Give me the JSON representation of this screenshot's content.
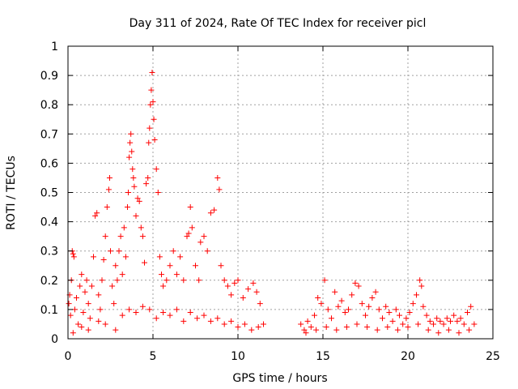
{
  "chart_data": {
    "type": "scatter",
    "title": "Day 311 of 2024, Rate Of TEC Index for receiver picl",
    "xlabel": "GPS time / hours",
    "ylabel": "ROTI / TECUs",
    "xlim": [
      0,
      25
    ],
    "ylim": [
      0,
      1
    ],
    "xticks": [
      0,
      5,
      10,
      15,
      20,
      25
    ],
    "xtick_labels": [
      "0",
      "5",
      "10",
      "15",
      "20",
      "25"
    ],
    "yticks": [
      0,
      0.1,
      0.2,
      0.3,
      0.4,
      0.5,
      0.6,
      0.7,
      0.8,
      0.9,
      1
    ],
    "ytick_labels": [
      "0",
      "0.1",
      "0.2",
      "0.3",
      "0.4",
      "0.5",
      "0.6",
      "0.7",
      "0.8",
      "0.9",
      "1"
    ],
    "grid": true,
    "marker": "plus",
    "color": "#ff0000",
    "series": [
      {
        "points": [
          [
            0.05,
            0.12
          ],
          [
            0.1,
            0.15
          ],
          [
            0.15,
            0.08
          ],
          [
            0.2,
            0.2
          ],
          [
            0.25,
            0.3
          ],
          [
            0.3,
            0.29
          ],
          [
            0.35,
            0.28
          ],
          [
            0.4,
            0.1
          ],
          [
            0.5,
            0.14
          ],
          [
            0.6,
            0.05
          ],
          [
            0.7,
            0.18
          ],
          [
            0.8,
            0.22
          ],
          [
            0.9,
            0.09
          ],
          [
            1.0,
            0.16
          ],
          [
            1.1,
            0.2
          ],
          [
            1.2,
            0.12
          ],
          [
            1.3,
            0.07
          ],
          [
            1.4,
            0.18
          ],
          [
            1.5,
            0.28
          ],
          [
            1.6,
            0.42
          ],
          [
            1.7,
            0.43
          ],
          [
            1.8,
            0.15
          ],
          [
            1.9,
            0.1
          ],
          [
            2.0,
            0.2
          ],
          [
            2.1,
            0.27
          ],
          [
            2.2,
            0.35
          ],
          [
            2.3,
            0.45
          ],
          [
            2.4,
            0.51
          ],
          [
            2.45,
            0.55
          ],
          [
            2.5,
            0.3
          ],
          [
            2.6,
            0.18
          ],
          [
            2.7,
            0.12
          ],
          [
            2.8,
            0.25
          ],
          [
            2.9,
            0.2
          ],
          [
            3.0,
            0.3
          ],
          [
            3.1,
            0.35
          ],
          [
            3.2,
            0.22
          ],
          [
            3.3,
            0.38
          ],
          [
            3.4,
            0.28
          ],
          [
            3.5,
            0.45
          ],
          [
            3.55,
            0.5
          ],
          [
            3.6,
            0.62
          ],
          [
            3.65,
            0.67
          ],
          [
            3.7,
            0.7
          ],
          [
            3.75,
            0.64
          ],
          [
            3.8,
            0.58
          ],
          [
            3.85,
            0.55
          ],
          [
            3.9,
            0.52
          ],
          [
            4.0,
            0.42
          ],
          [
            4.1,
            0.48
          ],
          [
            4.2,
            0.47
          ],
          [
            4.3,
            0.38
          ],
          [
            4.4,
            0.35
          ],
          [
            4.5,
            0.26
          ],
          [
            4.6,
            0.53
          ],
          [
            4.7,
            0.55
          ],
          [
            4.75,
            0.67
          ],
          [
            4.8,
            0.72
          ],
          [
            4.85,
            0.8
          ],
          [
            4.9,
            0.85
          ],
          [
            4.95,
            0.91
          ],
          [
            5.0,
            0.81
          ],
          [
            5.05,
            0.75
          ],
          [
            5.1,
            0.68
          ],
          [
            5.2,
            0.58
          ],
          [
            5.3,
            0.5
          ],
          [
            5.4,
            0.28
          ],
          [
            5.5,
            0.22
          ],
          [
            5.6,
            0.18
          ],
          [
            5.8,
            0.2
          ],
          [
            6.0,
            0.25
          ],
          [
            6.2,
            0.3
          ],
          [
            6.4,
            0.22
          ],
          [
            6.6,
            0.28
          ],
          [
            6.8,
            0.2
          ],
          [
            7.0,
            0.35
          ],
          [
            7.1,
            0.36
          ],
          [
            7.2,
            0.45
          ],
          [
            7.3,
            0.38
          ],
          [
            7.5,
            0.25
          ],
          [
            7.7,
            0.2
          ],
          [
            7.8,
            0.33
          ],
          [
            8.0,
            0.35
          ],
          [
            8.2,
            0.3
          ],
          [
            8.4,
            0.43
          ],
          [
            8.6,
            0.44
          ],
          [
            8.8,
            0.55
          ],
          [
            8.9,
            0.51
          ],
          [
            9.0,
            0.25
          ],
          [
            9.2,
            0.2
          ],
          [
            9.4,
            0.18
          ],
          [
            9.6,
            0.15
          ],
          [
            9.8,
            0.19
          ],
          [
            10.0,
            0.2
          ],
          [
            10.3,
            0.14
          ],
          [
            10.6,
            0.17
          ],
          [
            10.9,
            0.19
          ],
          [
            11.1,
            0.16
          ],
          [
            11.3,
            0.12
          ],
          [
            11.5,
            0.05
          ],
          [
            0.3,
            0.02
          ],
          [
            0.8,
            0.04
          ],
          [
            1.2,
            0.03
          ],
          [
            1.8,
            0.06
          ],
          [
            2.2,
            0.05
          ],
          [
            2.8,
            0.03
          ],
          [
            3.2,
            0.08
          ],
          [
            3.6,
            0.1
          ],
          [
            4.0,
            0.09
          ],
          [
            4.4,
            0.11
          ],
          [
            4.8,
            0.1
          ],
          [
            5.2,
            0.07
          ],
          [
            5.6,
            0.09
          ],
          [
            6.0,
            0.08
          ],
          [
            6.4,
            0.1
          ],
          [
            6.8,
            0.06
          ],
          [
            7.2,
            0.09
          ],
          [
            7.6,
            0.07
          ],
          [
            8.0,
            0.08
          ],
          [
            8.4,
            0.06
          ],
          [
            8.8,
            0.07
          ],
          [
            9.2,
            0.05
          ],
          [
            9.6,
            0.06
          ],
          [
            10.0,
            0.04
          ],
          [
            10.4,
            0.05
          ],
          [
            10.8,
            0.03
          ],
          [
            11.2,
            0.04
          ],
          [
            13.7,
            0.05
          ],
          [
            13.9,
            0.03
          ],
          [
            14.1,
            0.06
          ],
          [
            14.3,
            0.04
          ],
          [
            14.5,
            0.08
          ],
          [
            14.7,
            0.14
          ],
          [
            14.9,
            0.12
          ],
          [
            15.1,
            0.2
          ],
          [
            15.3,
            0.1
          ],
          [
            15.5,
            0.07
          ],
          [
            15.7,
            0.16
          ],
          [
            15.9,
            0.11
          ],
          [
            16.1,
            0.13
          ],
          [
            16.3,
            0.09
          ],
          [
            16.5,
            0.1
          ],
          [
            16.7,
            0.15
          ],
          [
            16.9,
            0.19
          ],
          [
            17.1,
            0.18
          ],
          [
            17.3,
            0.12
          ],
          [
            17.5,
            0.08
          ],
          [
            17.7,
            0.11
          ],
          [
            17.9,
            0.14
          ],
          [
            18.1,
            0.16
          ],
          [
            18.3,
            0.1
          ],
          [
            18.5,
            0.07
          ],
          [
            18.7,
            0.11
          ],
          [
            18.9,
            0.09
          ],
          [
            19.1,
            0.06
          ],
          [
            19.3,
            0.1
          ],
          [
            19.5,
            0.08
          ],
          [
            19.7,
            0.05
          ],
          [
            19.9,
            0.07
          ],
          [
            20.1,
            0.09
          ],
          [
            20.3,
            0.12
          ],
          [
            20.5,
            0.15
          ],
          [
            20.7,
            0.2
          ],
          [
            20.8,
            0.18
          ],
          [
            20.9,
            0.11
          ],
          [
            21.1,
            0.08
          ],
          [
            21.3,
            0.06
          ],
          [
            21.5,
            0.05
          ],
          [
            21.7,
            0.07
          ],
          [
            21.9,
            0.06
          ],
          [
            22.1,
            0.05
          ],
          [
            22.3,
            0.07
          ],
          [
            22.5,
            0.06
          ],
          [
            22.7,
            0.08
          ],
          [
            22.9,
            0.06
          ],
          [
            23.1,
            0.07
          ],
          [
            23.3,
            0.05
          ],
          [
            23.5,
            0.09
          ],
          [
            23.7,
            0.11
          ],
          [
            23.9,
            0.05
          ],
          [
            14.0,
            0.02
          ],
          [
            14.6,
            0.03
          ],
          [
            15.2,
            0.04
          ],
          [
            15.8,
            0.03
          ],
          [
            16.4,
            0.04
          ],
          [
            17.0,
            0.05
          ],
          [
            17.6,
            0.04
          ],
          [
            18.2,
            0.03
          ],
          [
            18.8,
            0.04
          ],
          [
            19.4,
            0.03
          ],
          [
            20.0,
            0.04
          ],
          [
            20.6,
            0.05
          ],
          [
            21.2,
            0.03
          ],
          [
            21.8,
            0.02
          ],
          [
            22.4,
            0.03
          ],
          [
            23.0,
            0.02
          ],
          [
            23.6,
            0.03
          ]
        ]
      }
    ]
  }
}
